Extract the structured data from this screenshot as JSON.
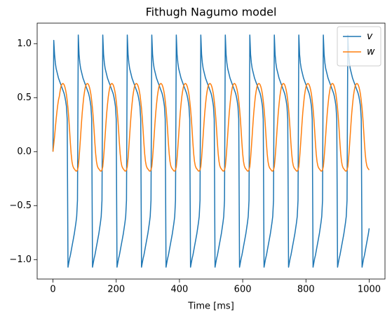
{
  "chart_data": {
    "type": "line",
    "title": "Fithugh Nagumo model",
    "x_label": "Time [ms]",
    "x": [
      0,
      2.5,
      5,
      7.5,
      10,
      12.5,
      15,
      17.5,
      20,
      22.5,
      25,
      27.5,
      30,
      32.5,
      35,
      37.5,
      40,
      42.5,
      45,
      47.5,
      50,
      52.5,
      55,
      57.5,
      60,
      62.5,
      65,
      67.5,
      70,
      72.5,
      75,
      77.5,
      80,
      82.5,
      85,
      87.5,
      90,
      92.5,
      95,
      97.5,
      100,
      102.5,
      105,
      107.5,
      110,
      112.5,
      115,
      117.5,
      120,
      122.5,
      125,
      127.5,
      130,
      132.5,
      135,
      137.5,
      140,
      142.5,
      145,
      147.5,
      150,
      152.5,
      155,
      157.5,
      160,
      162.5,
      165,
      167.5,
      170,
      172.5,
      175,
      177.5,
      180,
      182.5,
      185,
      187.5,
      190,
      192.5,
      195,
      197.5,
      200,
      202.5,
      205,
      207.5,
      210,
      212.5,
      215,
      217.5,
      220,
      222.5,
      225,
      227.5,
      230,
      232.5,
      235,
      237.5,
      240,
      242.5,
      245,
      247.5,
      250,
      252.5,
      255,
      257.5,
      260,
      262.5,
      265,
      267.5,
      270,
      272.5,
      275,
      277.5,
      280,
      282.5,
      285,
      287.5,
      290,
      292.5,
      295,
      297.5,
      300,
      302.5,
      305,
      307.5,
      310,
      312.5,
      315,
      317.5,
      320,
      322.5,
      325,
      327.5,
      330,
      332.5,
      335,
      337.5,
      340,
      342.5,
      345,
      347.5,
      350,
      352.5,
      355,
      357.5,
      360,
      362.5,
      365,
      367.5,
      370,
      372.5,
      375,
      377.5,
      380,
      382.5,
      385,
      387.5,
      390,
      392.5,
      395,
      397.5,
      400,
      402.5,
      405,
      407.5,
      410,
      412.5,
      415,
      417.5,
      420,
      422.5,
      425,
      427.5,
      430,
      432.5,
      435,
      437.5,
      440,
      442.5,
      445,
      447.5,
      450,
      452.5,
      455,
      457.5,
      460,
      462.5,
      465,
      467.5,
      470,
      472.5,
      475,
      477.5,
      480,
      482.5,
      485,
      487.5,
      490,
      492.5,
      495,
      497.5,
      500,
      502.5,
      505,
      507.5,
      510,
      512.5,
      515,
      517.5,
      520,
      522.5,
      525,
      527.5,
      530,
      532.5,
      535,
      537.5,
      540,
      542.5,
      545,
      547.5,
      550,
      552.5,
      555,
      557.5,
      560,
      562.5,
      565,
      567.5,
      570,
      572.5,
      575,
      577.5,
      580,
      582.5,
      585,
      587.5,
      590,
      592.5,
      595,
      597.5,
      600,
      602.5,
      605,
      607.5,
      610,
      612.5,
      615,
      617.5,
      620,
      622.5,
      625,
      627.5,
      630,
      632.5,
      635,
      637.5,
      640,
      642.5,
      645,
      647.5,
      650,
      652.5,
      655,
      657.5,
      660,
      662.5,
      665,
      667.5,
      670,
      672.5,
      675,
      677.5,
      680,
      682.5,
      685,
      687.5,
      690,
      692.5,
      695,
      697.5,
      700,
      702.5,
      705,
      707.5,
      710,
      712.5,
      715,
      717.5,
      720,
      722.5,
      725,
      727.5,
      730,
      732.5,
      735,
      737.5,
      740,
      742.5,
      745,
      747.5,
      750,
      752.5,
      755,
      757.5,
      760,
      762.5,
      765,
      767.5,
      770,
      772.5,
      775,
      777.5,
      780,
      782.5,
      785,
      787.5,
      790,
      792.5,
      795,
      797.5,
      800,
      802.5,
      805,
      807.5,
      810,
      812.5,
      815,
      817.5,
      820,
      822.5,
      825,
      827.5,
      830,
      832.5,
      835,
      837.5,
      840,
      842.5,
      845,
      847.5,
      850,
      852.5,
      855,
      857.5,
      860,
      862.5,
      865,
      867.5,
      870,
      872.5,
      875,
      877.5,
      880,
      882.5,
      885,
      887.5,
      890,
      892.5,
      895,
      897.5,
      900,
      902.5,
      905,
      907.5,
      910,
      912.5,
      915,
      917.5,
      920,
      922.5,
      925,
      927.5,
      930,
      932.5,
      935,
      937.5,
      940,
      942.5,
      945,
      947.5,
      950,
      952.5,
      955,
      957.5,
      960,
      962.5,
      965,
      967.5,
      970,
      972.5,
      975,
      977.5,
      980,
      982.5,
      985,
      987.5,
      990,
      992.5,
      995,
      997.5,
      1000
    ],
    "series": [
      {
        "name": "v",
        "color": "#1f77b4",
        "values": [
          0.0,
          1.03,
          0.9,
          0.82,
          0.77,
          0.74,
          0.71,
          0.68,
          0.66,
          0.64,
          0.62,
          0.6,
          0.58,
          0.56,
          0.54,
          0.51,
          0.47,
          0.42,
          0.3,
          -1.07,
          -1.03,
          -0.99,
          -0.96,
          -0.92,
          -0.88,
          -0.84,
          -0.8,
          -0.76,
          -0.71,
          -0.66,
          -0.6,
          -0.45,
          1.08,
          0.9,
          0.82,
          0.77,
          0.74,
          0.71,
          0.68,
          0.66,
          0.64,
          0.62,
          0.6,
          0.58,
          0.56,
          0.54,
          0.51,
          0.47,
          0.42,
          0.3,
          -1.07,
          -1.03,
          -0.99,
          -0.96,
          -0.92,
          -0.88,
          -0.84,
          -0.8,
          -0.76,
          -0.71,
          -0.66,
          -0.6,
          -0.45,
          1.08,
          0.9,
          0.82,
          0.77,
          0.74,
          0.71,
          0.68,
          0.66,
          0.64,
          0.62,
          0.6,
          0.58,
          0.56,
          0.54,
          0.51,
          0.47,
          0.42,
          0.3,
          -1.07,
          -1.03,
          -0.99,
          -0.96,
          -0.92,
          -0.88,
          -0.84,
          -0.8,
          -0.76,
          -0.71,
          -0.66,
          -0.6,
          -0.45,
          1.08,
          0.9,
          0.82,
          0.77,
          0.74,
          0.71,
          0.68,
          0.66,
          0.64,
          0.62,
          0.6,
          0.58,
          0.56,
          0.54,
          0.51,
          0.47,
          0.42,
          0.3,
          -1.07,
          -1.03,
          -0.99,
          -0.96,
          -0.92,
          -0.88,
          -0.84,
          -0.8,
          -0.76,
          -0.71,
          -0.66,
          -0.6,
          -0.45,
          1.08,
          0.9,
          0.82,
          0.77,
          0.74,
          0.71,
          0.68,
          0.66,
          0.64,
          0.62,
          0.6,
          0.58,
          0.56,
          0.54,
          0.51,
          0.47,
          0.42,
          0.3,
          -1.07,
          -1.03,
          -0.99,
          -0.96,
          -0.92,
          -0.88,
          -0.84,
          -0.8,
          -0.76,
          -0.71,
          -0.66,
          -0.6,
          -0.45,
          1.08,
          0.9,
          0.82,
          0.77,
          0.74,
          0.71,
          0.68,
          0.66,
          0.64,
          0.62,
          0.6,
          0.58,
          0.56,
          0.54,
          0.51,
          0.47,
          0.42,
          0.3,
          -1.07,
          -1.03,
          -0.99,
          -0.96,
          -0.92,
          -0.88,
          -0.84,
          -0.8,
          -0.76,
          -0.71,
          -0.66,
          -0.6,
          -0.45,
          1.08,
          0.9,
          0.82,
          0.77,
          0.74,
          0.71,
          0.68,
          0.66,
          0.64,
          0.62,
          0.6,
          0.58,
          0.56,
          0.54,
          0.51,
          0.47,
          0.42,
          0.3,
          -1.07,
          -1.03,
          -0.99,
          -0.96,
          -0.92,
          -0.88,
          -0.84,
          -0.8,
          -0.76,
          -0.71,
          -0.66,
          -0.6,
          -0.45,
          1.08,
          0.9,
          0.82,
          0.77,
          0.74,
          0.71,
          0.68,
          0.66,
          0.64,
          0.62,
          0.6,
          0.58,
          0.56,
          0.54,
          0.51,
          0.47,
          0.42,
          0.3,
          -1.07,
          -1.03,
          -0.99,
          -0.96,
          -0.92,
          -0.88,
          -0.84,
          -0.8,
          -0.76,
          -0.71,
          -0.66,
          -0.6,
          -0.45,
          1.08,
          0.9,
          0.82,
          0.77,
          0.74,
          0.71,
          0.68,
          0.66,
          0.64,
          0.62,
          0.6,
          0.58,
          0.56,
          0.54,
          0.51,
          0.47,
          0.42,
          0.3,
          -1.07,
          -1.03,
          -0.99,
          -0.96,
          -0.92,
          -0.88,
          -0.84,
          -0.8,
          -0.76,
          -0.71,
          -0.66,
          -0.6,
          -0.45,
          1.08,
          0.9,
          0.82,
          0.77,
          0.74,
          0.71,
          0.68,
          0.66,
          0.64,
          0.62,
          0.6,
          0.58,
          0.56,
          0.54,
          0.51,
          0.47,
          0.42,
          0.3,
          -1.07,
          -1.03,
          -0.99,
          -0.96,
          -0.92,
          -0.88,
          -0.84,
          -0.8,
          -0.76,
          -0.71,
          -0.66,
          -0.6,
          -0.45,
          1.08,
          0.9,
          0.82,
          0.77,
          0.74,
          0.71,
          0.68,
          0.66,
          0.64,
          0.62,
          0.6,
          0.58,
          0.56,
          0.54,
          0.51,
          0.47,
          0.42,
          0.3,
          -1.07,
          -1.03,
          -0.99,
          -0.96,
          -0.92,
          -0.88,
          -0.84,
          -0.8,
          -0.76,
          -0.71,
          -0.66,
          -0.6,
          -0.45,
          1.08,
          0.9,
          0.82,
          0.77,
          0.74,
          0.71,
          0.68,
          0.66,
          0.64,
          0.62,
          0.6,
          0.58,
          0.56,
          0.54,
          0.51,
          0.47,
          0.42,
          0.3,
          -1.07,
          -1.03,
          -0.99,
          -0.96,
          -0.92,
          -0.88,
          -0.84,
          -0.8,
          -0.76,
          -0.71,
          -0.66,
          -0.6,
          -0.45,
          1.08,
          0.9,
          0.82,
          0.77,
          0.74,
          0.71,
          0.68,
          0.66,
          0.64,
          0.62,
          0.6,
          0.58,
          0.56,
          0.54,
          0.51,
          0.47,
          0.42,
          0.3,
          -1.07,
          -1.03,
          -0.99,
          -0.96,
          -0.92,
          -0.88,
          -0.84,
          -0.8,
          -0.76,
          -0.71
        ]
      },
      {
        "name": "w",
        "color": "#ff7f0e",
        "values": [
          0.0,
          0.07,
          0.14,
          0.22,
          0.3,
          0.37,
          0.43,
          0.48,
          0.51,
          0.56,
          0.6,
          0.62,
          0.63,
          0.63,
          0.62,
          0.6,
          0.57,
          0.53,
          0.47,
          0.4,
          0.31,
          0.2,
          0.08,
          -0.02,
          -0.09,
          -0.13,
          -0.15,
          -0.16,
          -0.17,
          -0.18,
          -0.18,
          -0.17,
          -0.14,
          -0.06,
          0.04,
          0.15,
          0.26,
          0.36,
          0.44,
          0.51,
          0.56,
          0.6,
          0.62,
          0.63,
          0.63,
          0.62,
          0.6,
          0.57,
          0.53,
          0.47,
          0.4,
          0.31,
          0.2,
          0.08,
          -0.02,
          -0.09,
          -0.13,
          -0.15,
          -0.16,
          -0.17,
          -0.18,
          -0.18,
          -0.17,
          -0.14,
          -0.06,
          0.04,
          0.15,
          0.26,
          0.36,
          0.44,
          0.51,
          0.56,
          0.6,
          0.62,
          0.63,
          0.63,
          0.62,
          0.6,
          0.57,
          0.53,
          0.47,
          0.4,
          0.31,
          0.2,
          0.08,
          -0.02,
          -0.09,
          -0.13,
          -0.15,
          -0.16,
          -0.17,
          -0.18,
          -0.18,
          -0.17,
          -0.14,
          -0.06,
          0.04,
          0.15,
          0.26,
          0.36,
          0.44,
          0.51,
          0.56,
          0.6,
          0.62,
          0.63,
          0.63,
          0.62,
          0.6,
          0.57,
          0.53,
          0.47,
          0.4,
          0.31,
          0.2,
          0.08,
          -0.02,
          -0.09,
          -0.13,
          -0.15,
          -0.16,
          -0.17,
          -0.18,
          -0.18,
          -0.17,
          -0.14,
          -0.06,
          0.04,
          0.15,
          0.26,
          0.36,
          0.44,
          0.51,
          0.56,
          0.6,
          0.62,
          0.63,
          0.63,
          0.62,
          0.6,
          0.57,
          0.53,
          0.47,
          0.4,
          0.31,
          0.2,
          0.08,
          -0.02,
          -0.09,
          -0.13,
          -0.15,
          -0.16,
          -0.17,
          -0.18,
          -0.18,
          -0.17,
          -0.14,
          -0.06,
          0.04,
          0.15,
          0.26,
          0.36,
          0.44,
          0.51,
          0.56,
          0.6,
          0.62,
          0.63,
          0.63,
          0.62,
          0.6,
          0.57,
          0.53,
          0.47,
          0.4,
          0.31,
          0.2,
          0.08,
          -0.02,
          -0.09,
          -0.13,
          -0.15,
          -0.16,
          -0.17,
          -0.18,
          -0.18,
          -0.17,
          -0.14,
          -0.06,
          0.04,
          0.15,
          0.26,
          0.36,
          0.44,
          0.51,
          0.56,
          0.6,
          0.62,
          0.63,
          0.63,
          0.62,
          0.6,
          0.57,
          0.53,
          0.47,
          0.4,
          0.31,
          0.2,
          0.08,
          -0.02,
          -0.09,
          -0.13,
          -0.15,
          -0.16,
          -0.17,
          -0.18,
          -0.18,
          -0.17,
          -0.14,
          -0.06,
          0.04,
          0.15,
          0.26,
          0.36,
          0.44,
          0.51,
          0.56,
          0.6,
          0.62,
          0.63,
          0.63,
          0.62,
          0.6,
          0.57,
          0.53,
          0.47,
          0.4,
          0.31,
          0.2,
          0.08,
          -0.02,
          -0.09,
          -0.13,
          -0.15,
          -0.16,
          -0.17,
          -0.18,
          -0.18,
          -0.17,
          -0.14,
          -0.06,
          0.04,
          0.15,
          0.26,
          0.36,
          0.44,
          0.51,
          0.56,
          0.6,
          0.62,
          0.63,
          0.63,
          0.62,
          0.6,
          0.57,
          0.53,
          0.47,
          0.4,
          0.31,
          0.2,
          0.08,
          -0.02,
          -0.09,
          -0.13,
          -0.15,
          -0.16,
          -0.17,
          -0.18,
          -0.18,
          -0.17,
          -0.14,
          -0.06,
          0.04,
          0.15,
          0.26,
          0.36,
          0.44,
          0.51,
          0.56,
          0.6,
          0.62,
          0.63,
          0.63,
          0.62,
          0.6,
          0.57,
          0.53,
          0.47,
          0.4,
          0.31,
          0.2,
          0.08,
          -0.02,
          -0.09,
          -0.13,
          -0.15,
          -0.16,
          -0.17,
          -0.18,
          -0.18,
          -0.17,
          -0.14,
          -0.06,
          0.04,
          0.15,
          0.26,
          0.36,
          0.44,
          0.51,
          0.56,
          0.6,
          0.62,
          0.63,
          0.63,
          0.62,
          0.6,
          0.57,
          0.53,
          0.47,
          0.4,
          0.31,
          0.2,
          0.08,
          -0.02,
          -0.09,
          -0.13,
          -0.15,
          -0.16,
          -0.17,
          -0.18,
          -0.18,
          -0.17,
          -0.14,
          -0.06,
          0.04,
          0.15,
          0.26,
          0.36,
          0.44,
          0.51,
          0.56,
          0.6,
          0.62,
          0.63,
          0.63,
          0.62,
          0.6,
          0.57,
          0.53,
          0.47,
          0.4,
          0.31,
          0.2,
          0.08,
          -0.02,
          -0.09,
          -0.13,
          -0.15,
          -0.16,
          -0.17,
          -0.18,
          -0.18,
          -0.17,
          -0.14,
          -0.06,
          0.04,
          0.15,
          0.26,
          0.36,
          0.44,
          0.51,
          0.56,
          0.6,
          0.62,
          0.63,
          0.63,
          0.62,
          0.6,
          0.57,
          0.53,
          0.47,
          0.4,
          0.31,
          0.2,
          0.08,
          -0.02,
          -0.09,
          -0.13,
          -0.15,
          -0.16,
          -0.17
        ]
      }
    ],
    "xlim": [
      -50,
      1050
    ],
    "xticks": [
      0,
      200,
      400,
      600,
      800,
      1000
    ],
    "ylim": [
      -1.18,
      1.19
    ],
    "yticks": [
      {
        "value": -1,
        "label": "−1.0"
      },
      {
        "value": -0.5,
        "label": "−0.5"
      },
      {
        "value": 0,
        "label": "0.0"
      },
      {
        "value": 0.5,
        "label": "0.5"
      },
      {
        "value": 1,
        "label": "1.0"
      }
    ],
    "grid": false,
    "legend": "upper right"
  }
}
